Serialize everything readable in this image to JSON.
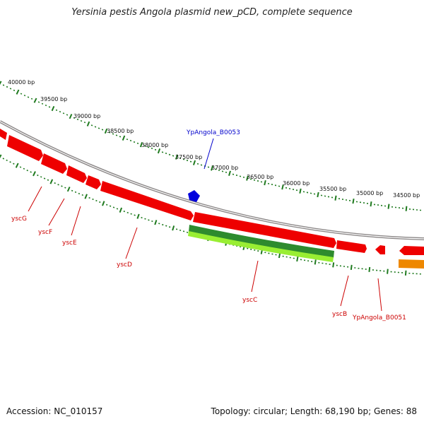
{
  "title": "Yersinia pestis Angola plasmid new_pCD, complete sequence",
  "accession": "Accession: NC_010157",
  "summary": "Topology: circular; Length: 68,190 bp; Genes: 88",
  "colors": {
    "backbone": "#8c8888",
    "gene_red": "#ee0000",
    "gene_green_dark": "#2e8b2e",
    "gene_green_light": "#99ee33",
    "gene_orange": "#ee8800",
    "gene_blue": "#0000dd",
    "tick_green": "#1f7a1f",
    "label_red": "#cc0000",
    "label_blue": "#0000cc"
  },
  "ticks": [
    {
      "label": "40000 bp"
    },
    {
      "label": "39500 bp"
    },
    {
      "label": "39000 bp"
    },
    {
      "label": "38500 bp"
    },
    {
      "label": "38000 bp"
    },
    {
      "label": "37500 bp"
    },
    {
      "label": "37000 bp"
    },
    {
      "label": "36500 bp"
    },
    {
      "label": "36000 bp"
    },
    {
      "label": "35500 bp"
    },
    {
      "label": "35000 bp"
    },
    {
      "label": "34500 bp"
    }
  ],
  "genes": [
    {
      "name": "YpAngola_B0053",
      "color": "label_blue"
    },
    {
      "name": "yscG",
      "color": "label_red"
    },
    {
      "name": "yscF",
      "color": "label_red"
    },
    {
      "name": "yscE",
      "color": "label_red"
    },
    {
      "name": "yscD",
      "color": "label_red"
    },
    {
      "name": "yscC",
      "color": "label_red"
    },
    {
      "name": "yscB",
      "color": "label_red"
    },
    {
      "name": "YpAngola_B0051",
      "color": "label_red"
    }
  ]
}
